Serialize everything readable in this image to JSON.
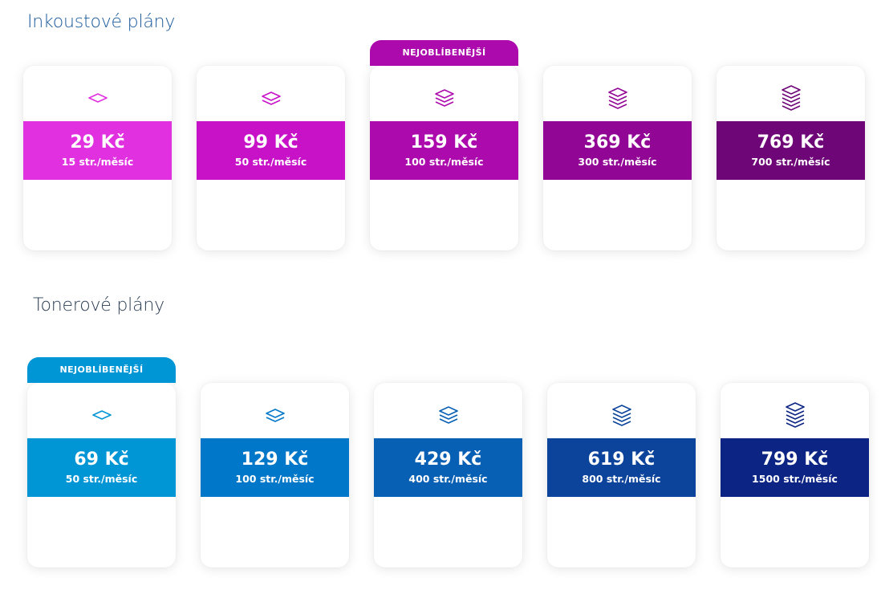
{
  "ink": {
    "title": "Inkoustové plány",
    "plans": [
      {
        "price": "29 Kč",
        "pages": "15 str./měsíc",
        "badge": "",
        "color": "#e030e0",
        "icon": "layers-1-icon",
        "layers": 1
      },
      {
        "price": "99 Kč",
        "pages": "50 str./měsíc",
        "badge": "",
        "color": "#c812c8",
        "icon": "layers-2-icon",
        "layers": 2
      },
      {
        "price": "159 Kč",
        "pages": "100 str./měsíc",
        "badge": "NEJOBLÍBENĚJŠÍ",
        "color": "#ad0aad",
        "icon": "layers-3-icon",
        "layers": 3
      },
      {
        "price": "369 Kč",
        "pages": "300 str./měsíc",
        "badge": "",
        "color": "#920696",
        "icon": "layers-4-icon",
        "layers": 4
      },
      {
        "price": "769 Kč",
        "pages": "700 str./měsíc",
        "badge": "",
        "color": "#6e0678",
        "icon": "layers-5-icon",
        "layers": 5
      }
    ]
  },
  "toner": {
    "title": "Tonerové plány",
    "plans": [
      {
        "price": "69 Kč",
        "pages": "50 str./měsíc",
        "badge": "NEJOBLÍBENĚJŠÍ",
        "color": "#0096d6",
        "icon": "layers-1-icon",
        "layers": 1
      },
      {
        "price": "129 Kč",
        "pages": "100 str./měsíc",
        "badge": "",
        "color": "#0077c8",
        "icon": "layers-2-icon",
        "layers": 2
      },
      {
        "price": "429 Kč",
        "pages": "400 str./měsíc",
        "badge": "",
        "color": "#0860b4",
        "icon": "layers-3-icon",
        "layers": 3
      },
      {
        "price": "619 Kč",
        "pages": "800 str./měsíc",
        "badge": "",
        "color": "#0c449c",
        "icon": "layers-4-icon",
        "layers": 4
      },
      {
        "price": "799 Kč",
        "pages": "1500 str./měsíc",
        "badge": "",
        "color": "#0c2484",
        "icon": "layers-5-icon",
        "layers": 5
      }
    ]
  }
}
